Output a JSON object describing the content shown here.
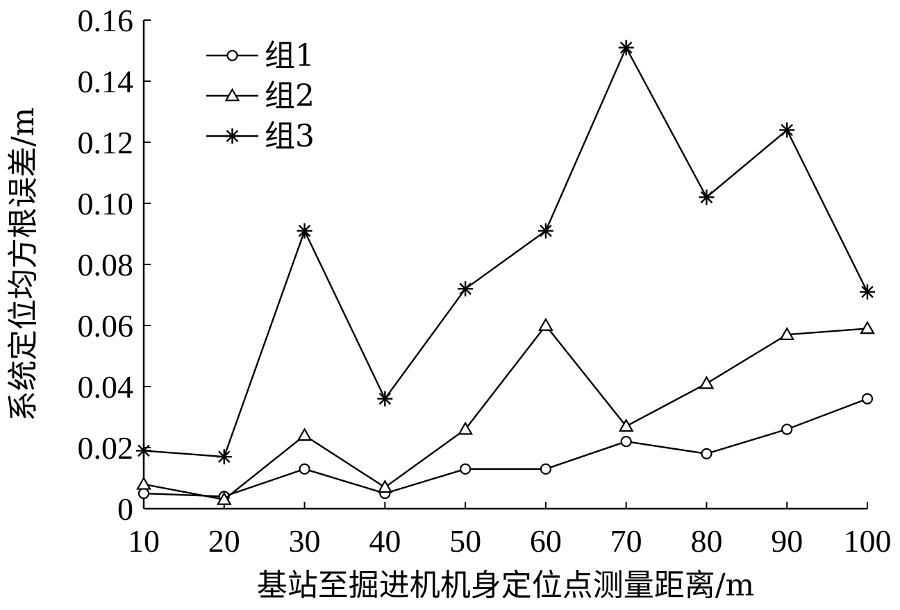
{
  "chart_data": {
    "type": "line",
    "xlabel": "基站至掘进机机身定位点测量距离/m",
    "ylabel": "系统定位均方根误差/m",
    "x": [
      10,
      20,
      30,
      40,
      50,
      60,
      70,
      80,
      90,
      100
    ],
    "x_ticks": [
      "10",
      "20",
      "30",
      "40",
      "50",
      "60",
      "70",
      "80",
      "90",
      "100"
    ],
    "y_ticks": [
      "0",
      "0.02",
      "0.04",
      "0.06",
      "0.08",
      "0.10",
      "0.12",
      "0.14",
      "0.16"
    ],
    "xlim": [
      10,
      100
    ],
    "ylim": [
      0,
      0.16
    ],
    "grid": false,
    "legend_position": "top-left",
    "series": [
      {
        "name": "组1",
        "marker": "circle",
        "values": [
          0.005,
          0.004,
          0.013,
          0.005,
          0.013,
          0.013,
          0.022,
          0.018,
          0.026,
          0.036
        ]
      },
      {
        "name": "组2",
        "marker": "triangle",
        "values": [
          0.008,
          0.003,
          0.024,
          0.007,
          0.026,
          0.06,
          0.027,
          0.041,
          0.057,
          0.059
        ]
      },
      {
        "name": "组3",
        "marker": "asterisk",
        "values": [
          0.019,
          0.017,
          0.091,
          0.036,
          0.072,
          0.091,
          0.151,
          0.102,
          0.124,
          0.071
        ]
      }
    ]
  }
}
